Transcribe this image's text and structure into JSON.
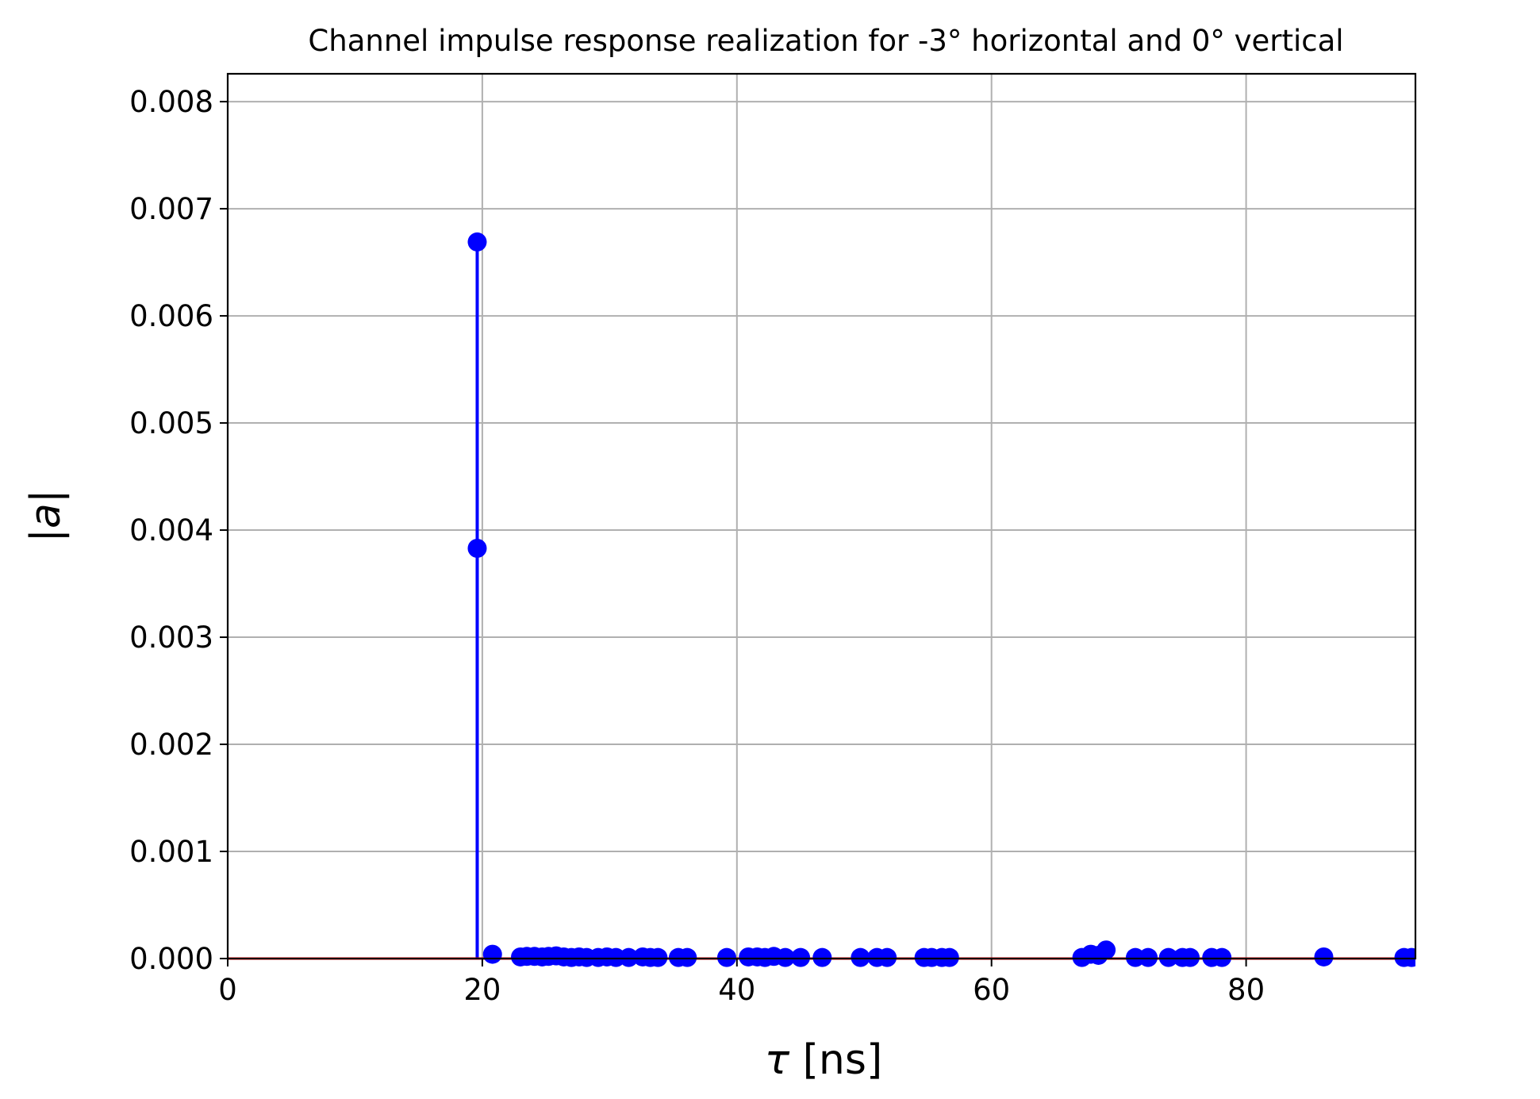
{
  "chart_data": {
    "type": "stem",
    "title": "Channel impulse response realization for -3° horizontal and 0° vertical",
    "xlabel_symbol": "τ",
    "xlabel_unit": "[ns]",
    "ylabel_symbol": "a",
    "xlim": [
      0,
      93.3
    ],
    "ylim": [
      0,
      0.00826
    ],
    "xticks": [
      0,
      20,
      40,
      60,
      80
    ],
    "yticks": [
      0.0,
      0.001,
      0.002,
      0.003,
      0.004,
      0.005,
      0.006,
      0.007,
      0.008
    ],
    "xtick_labels": [
      "0",
      "20",
      "40",
      "60",
      "80"
    ],
    "ytick_labels": [
      "0.000",
      "0.001",
      "0.002",
      "0.003",
      "0.004",
      "0.005",
      "0.006",
      "0.007",
      "0.008"
    ],
    "grid": true,
    "baseline_value": 0,
    "colors": {
      "stem": "#0000ff",
      "marker": "#0000ff",
      "baseline": "#ff0000",
      "grid": "#b0b0b0",
      "axes": "#000000"
    },
    "series": [
      {
        "x": [
          19.6,
          19.6,
          20.8,
          23.0,
          23.5,
          24.1,
          24.7,
          25.2,
          25.8,
          26.4,
          27.0,
          27.6,
          28.2,
          29.1,
          29.8,
          30.5,
          31.5,
          32.6,
          33.2,
          33.8,
          35.4,
          36.1,
          39.2,
          40.9,
          41.6,
          42.2,
          42.9,
          43.8,
          45.0,
          46.7,
          49.7,
          51.0,
          51.8,
          54.7,
          55.3,
          56.1,
          56.7,
          67.1,
          67.8,
          68.4,
          69.0,
          71.3,
          72.3,
          73.9,
          75.0,
          75.6,
          77.3,
          78.1,
          86.1,
          92.4,
          93.0
        ],
        "values": [
          0.00669,
          0.00383,
          4e-05,
          1.5e-05,
          2e-05,
          2e-05,
          1.5e-05,
          2e-05,
          2.5e-05,
          1.5e-05,
          1e-05,
          1.5e-05,
          1e-05,
          1e-05,
          1.5e-05,
          1e-05,
          1e-05,
          1.5e-05,
          1e-05,
          1e-05,
          1e-05,
          1e-05,
          1e-05,
          1.5e-05,
          1.5e-05,
          1e-05,
          2e-05,
          1e-05,
          1e-05,
          1e-05,
          1e-05,
          1e-05,
          1e-05,
          1e-05,
          1e-05,
          1e-05,
          1e-05,
          1e-05,
          4e-05,
          3e-05,
          8e-05,
          1e-05,
          1e-05,
          1e-05,
          1e-05,
          1e-05,
          1e-05,
          1e-05,
          1.5e-05,
          1e-05,
          1e-05
        ]
      }
    ]
  }
}
